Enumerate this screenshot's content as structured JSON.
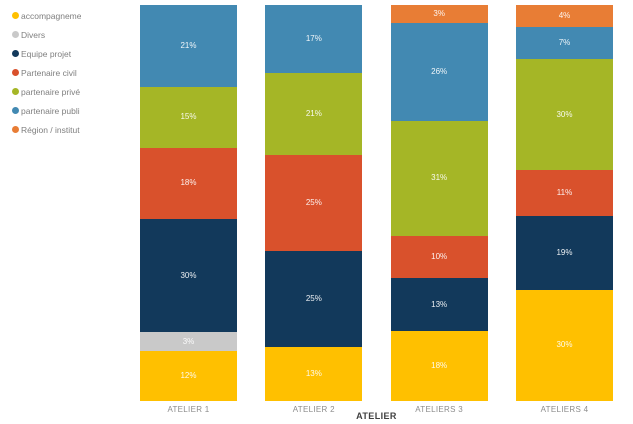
{
  "chart_data": {
    "type": "bar",
    "variant": "100%-stacked-column",
    "title": "",
    "xlabel": "ATELIER",
    "ylabel": "",
    "legend_position": "top-left",
    "grid": false,
    "categories": [
      "ATELIER 1",
      "ATELIER 2",
      "ATELIERS 3",
      "ATELIERS 4"
    ],
    "series": [
      {
        "name": "accompagneme",
        "color": "#FFC000",
        "values": [
          12,
          13,
          18,
          30
        ]
      },
      {
        "name": "Divers",
        "color": "#C9C9C9",
        "values": [
          3,
          0,
          0,
          0
        ]
      },
      {
        "name": "Equipe projet",
        "color": "#12395B",
        "values": [
          30,
          25,
          13,
          19
        ]
      },
      {
        "name": "Partenaire civil",
        "color": "#D9512C",
        "values": [
          18,
          25,
          10,
          11
        ]
      },
      {
        "name": "partenaire privé",
        "color": "#A5B626",
        "values": [
          15,
          21,
          31,
          30
        ]
      },
      {
        "name": "partenaire publi",
        "color": "#4289B2",
        "values": [
          21,
          17,
          26,
          7
        ]
      },
      {
        "name": "Région / institut",
        "color": "#E87D35",
        "values": [
          0,
          0,
          3,
          4
        ]
      }
    ],
    "data_label_format": "{value}%",
    "min_label_display": 3
  }
}
